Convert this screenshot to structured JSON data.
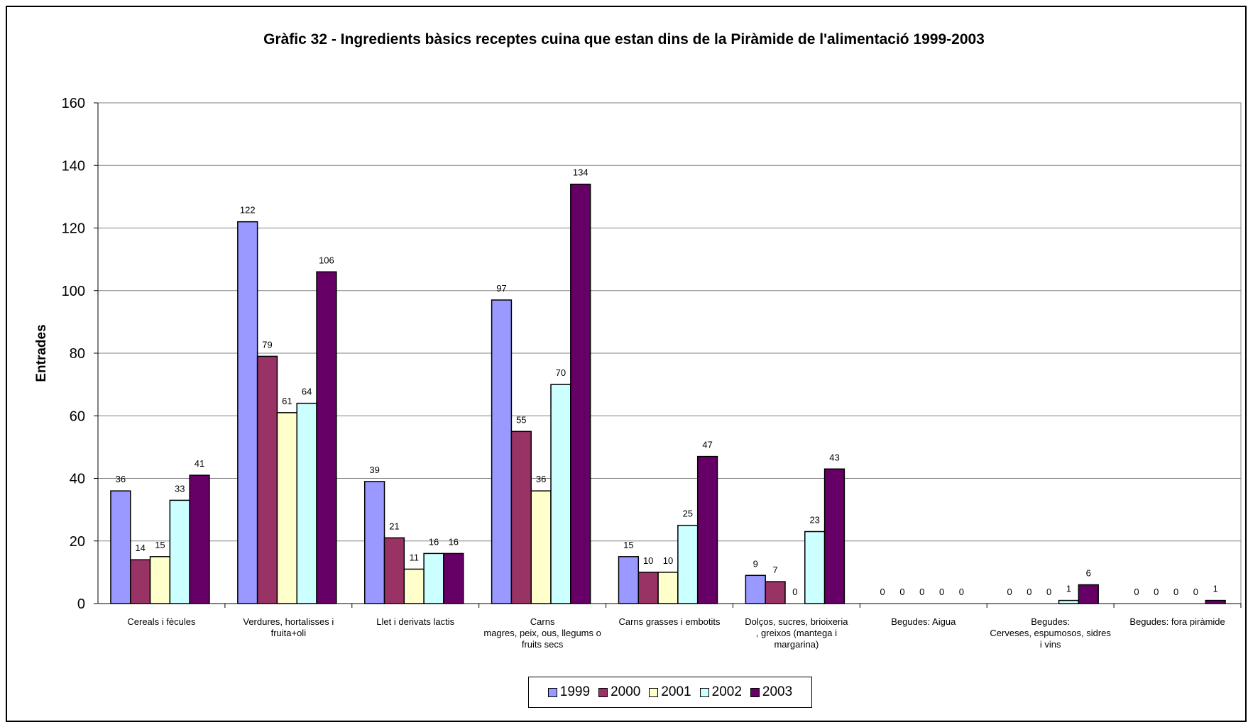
{
  "chart_data": {
    "type": "bar",
    "title": "Gràfic 32 - Ingredients bàsics receptes cuina que estan dins de la Piràmide de l'alimentació 1999-2003",
    "ylabel": "Entrades",
    "xlabel": "",
    "ylim": [
      0,
      160
    ],
    "yticks": [
      "0",
      "20",
      "40",
      "60",
      "80",
      "100",
      "120",
      "140",
      "160"
    ],
    "grid": true,
    "legend_position": "bottom",
    "categories": [
      [
        "Cereals i fècules"
      ],
      [
        "Verdures, hortalisses i",
        "fruita+oli"
      ],
      [
        "Llet i derivats lactis"
      ],
      [
        "Carns",
        "magres, peix, ous, llegums o",
        "fruits secs"
      ],
      [
        "Carns grasses i embotits"
      ],
      [
        "Dolços, sucres, brioixeria",
        ", greixos (mantega i",
        "margarina)"
      ],
      [
        "Begudes: Aigua"
      ],
      [
        "Begudes:",
        "Cerveses, espumosos, sidres",
        "i vins"
      ],
      [
        "Begudes: fora piràmide"
      ]
    ],
    "series": [
      {
        "name": "1999",
        "color": "#9999ff",
        "values": [
          36,
          122,
          39,
          97,
          15,
          9,
          0,
          0,
          0
        ]
      },
      {
        "name": "2000",
        "color": "#993366",
        "values": [
          14,
          79,
          21,
          55,
          10,
          7,
          0,
          0,
          0
        ]
      },
      {
        "name": "2001",
        "color": "#ffffcc",
        "values": [
          15,
          61,
          11,
          36,
          10,
          0,
          0,
          0,
          0
        ]
      },
      {
        "name": "2002",
        "color": "#ccffff",
        "values": [
          33,
          64,
          16,
          70,
          25,
          23,
          0,
          1,
          0
        ]
      },
      {
        "name": "2003",
        "color": "#660066",
        "values": [
          41,
          106,
          16,
          134,
          47,
          43,
          0,
          6,
          1
        ]
      }
    ]
  }
}
